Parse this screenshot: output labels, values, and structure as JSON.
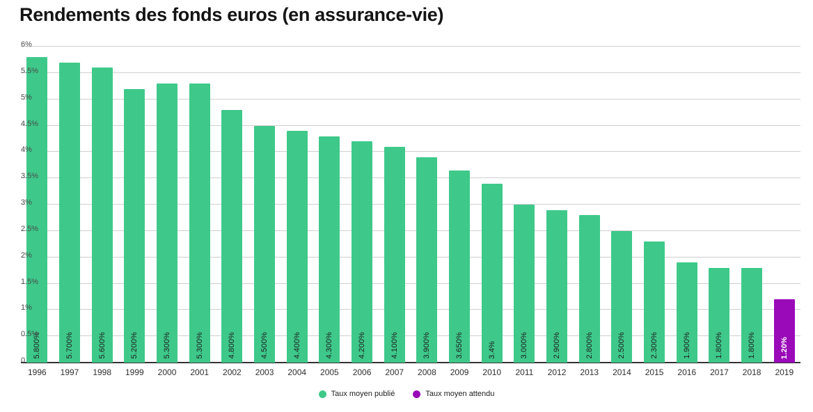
{
  "title": "Rendements des fonds euros (en assurance-vie)",
  "colors": {
    "published": "#3ec98a",
    "expected": "#9a0ab8",
    "grid": "#cfcfcf",
    "axis": "#333333"
  },
  "chart_data": {
    "type": "bar",
    "title": "Rendements des fonds euros (en assurance-vie)",
    "categories": [
      "1996",
      "1997",
      "1998",
      "1999",
      "2000",
      "2001",
      "2002",
      "2003",
      "2004",
      "2005",
      "2006",
      "2007",
      "2008",
      "2009",
      "2010",
      "2011",
      "2012",
      "2013",
      "2014",
      "2015",
      "2016",
      "2017",
      "2018",
      "2019"
    ],
    "values": [
      5.8,
      5.7,
      5.6,
      5.2,
      5.3,
      5.3,
      4.8,
      4.5,
      4.4,
      4.3,
      4.2,
      4.1,
      3.9,
      3.65,
      3.4,
      3.0,
      2.9,
      2.8,
      2.5,
      2.3,
      1.9,
      1.8,
      1.8,
      1.2
    ],
    "value_labels": [
      "5.800%",
      "5.700%",
      "5.600%",
      "5.200%",
      "5.300%",
      "5.300%",
      "4.800%",
      "4.500%",
      "4.400%",
      "4.300%",
      "4.200%",
      "4.100%",
      "3.900%",
      "3.650%",
      "3.4%",
      "3.000%",
      "2.900%",
      "2.800%",
      "2.500%",
      "2.300%",
      "1.900%",
      "1.800%",
      "1.800%",
      "1.20%"
    ],
    "expected_years": [
      "2019"
    ],
    "xlabel": "",
    "ylabel": "",
    "ylim": [
      0,
      6
    ],
    "ytick_labels": [
      "0",
      "0.5%",
      "1%",
      "1.5%",
      "2%",
      "2.5%",
      "3%",
      "3.5%",
      "4%",
      "4.5%",
      "5%",
      "5.5%",
      "6%"
    ],
    "grid": true,
    "legend_position": "bottom-center",
    "legend": [
      {
        "label": "Taux moyen publié",
        "key": "published"
      },
      {
        "label": "Taux moyen attendu",
        "key": "expected"
      }
    ]
  }
}
